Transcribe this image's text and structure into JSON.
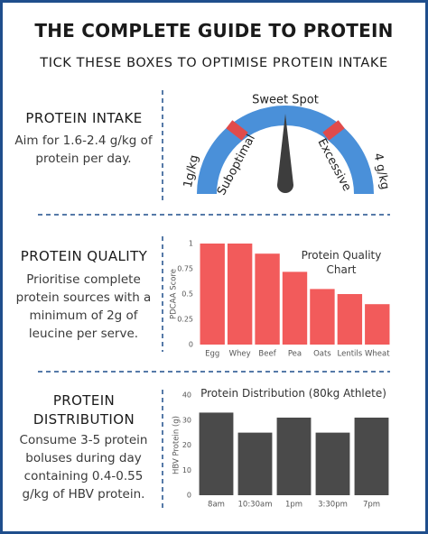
{
  "header": {
    "title": "THE COMPLETE GUIDE TO PROTEIN",
    "subtitle": "TICK THESE BOXES TO OPTIMISE PROTEIN INTAKE"
  },
  "sections": [
    {
      "heading": "PROTEIN INTAKE",
      "body": "Aim for 1.6-2.4 g/kg of protein per day.",
      "gauge": {
        "min_label": "1g/kg",
        "max_label": "4 g/kg",
        "zones": [
          "Suboptimal",
          "Sweet Spot",
          "Excessive"
        ]
      }
    },
    {
      "heading": "PROTEIN QUALITY",
      "body": "Prioritise complete protein sources with a minimum of 2g of leucine per serve."
    },
    {
      "heading": "PROTEIN DISTRIBUTION",
      "body": "Consume 3-5 protein boluses during day containing 0.4-0.55 g/kg of HBV protein."
    }
  ],
  "chart_data": [
    {
      "type": "bar",
      "title": "Protein Quality Chart",
      "y_label": "PDCAA Score",
      "categories": [
        "Egg",
        "Whey",
        "Beef",
        "Pea",
        "Oats",
        "Lentils",
        "Wheat"
      ],
      "values": [
        1,
        1,
        0.9,
        0.72,
        0.55,
        0.5,
        0.4
      ],
      "color": "#f25b5b",
      "ylim": [
        0,
        1
      ],
      "yticks": [
        0,
        0.25,
        0.5,
        0.75,
        1
      ]
    },
    {
      "type": "bar",
      "title": "Protein Distribution (80kg Athlete)",
      "y_label": "HBV Protein (g)",
      "categories": [
        "8am",
        "10:30am",
        "1pm",
        "3:30pm",
        "7pm"
      ],
      "values": [
        33,
        25,
        31,
        25,
        31
      ],
      "color": "#4a4a4a",
      "ylim": [
        0,
        40
      ],
      "yticks": [
        0,
        10,
        20,
        30,
        40
      ]
    }
  ]
}
